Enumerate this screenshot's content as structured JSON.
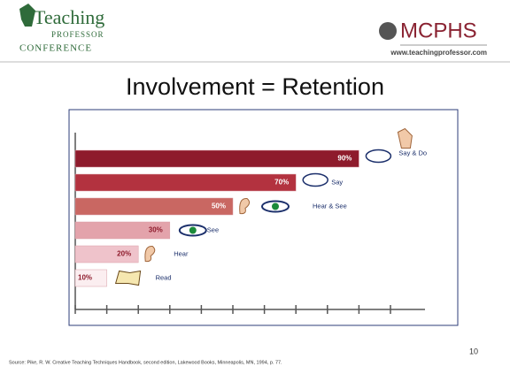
{
  "header": {
    "logo_left_title": "Teaching",
    "logo_left_sub": "PROFESSOR",
    "logo_left_bottom": "CONFERENCE",
    "logo_right": "MCPHS",
    "url": "www.teachingprofessor.com"
  },
  "chart_data": {
    "type": "bar",
    "orientation": "horizontal",
    "title": "Involvement = Retention",
    "categories": [
      "Say & Do",
      "Say",
      "Hear & See",
      "See",
      "Hear",
      "Read"
    ],
    "values": [
      90,
      70,
      50,
      30,
      20,
      10
    ],
    "value_labels": [
      "90%",
      "70%",
      "50%",
      "30%",
      "20%",
      "10%"
    ],
    "colors": [
      "#8e1b2c",
      "#b3323f",
      "#c96762",
      "#e3a3ab",
      "#efc3cb",
      "#fbeef0"
    ],
    "xlim": [
      0,
      100
    ],
    "xticks": [
      0,
      10,
      20,
      30,
      40,
      50,
      60,
      70,
      80,
      90,
      100
    ]
  },
  "source": "Source:  Pike, R. W. Creative Teaching Techniques Handbook, second edition, Lakewood Books, Minneapolis, MN, 1994, p. 77.",
  "page_number": "10"
}
